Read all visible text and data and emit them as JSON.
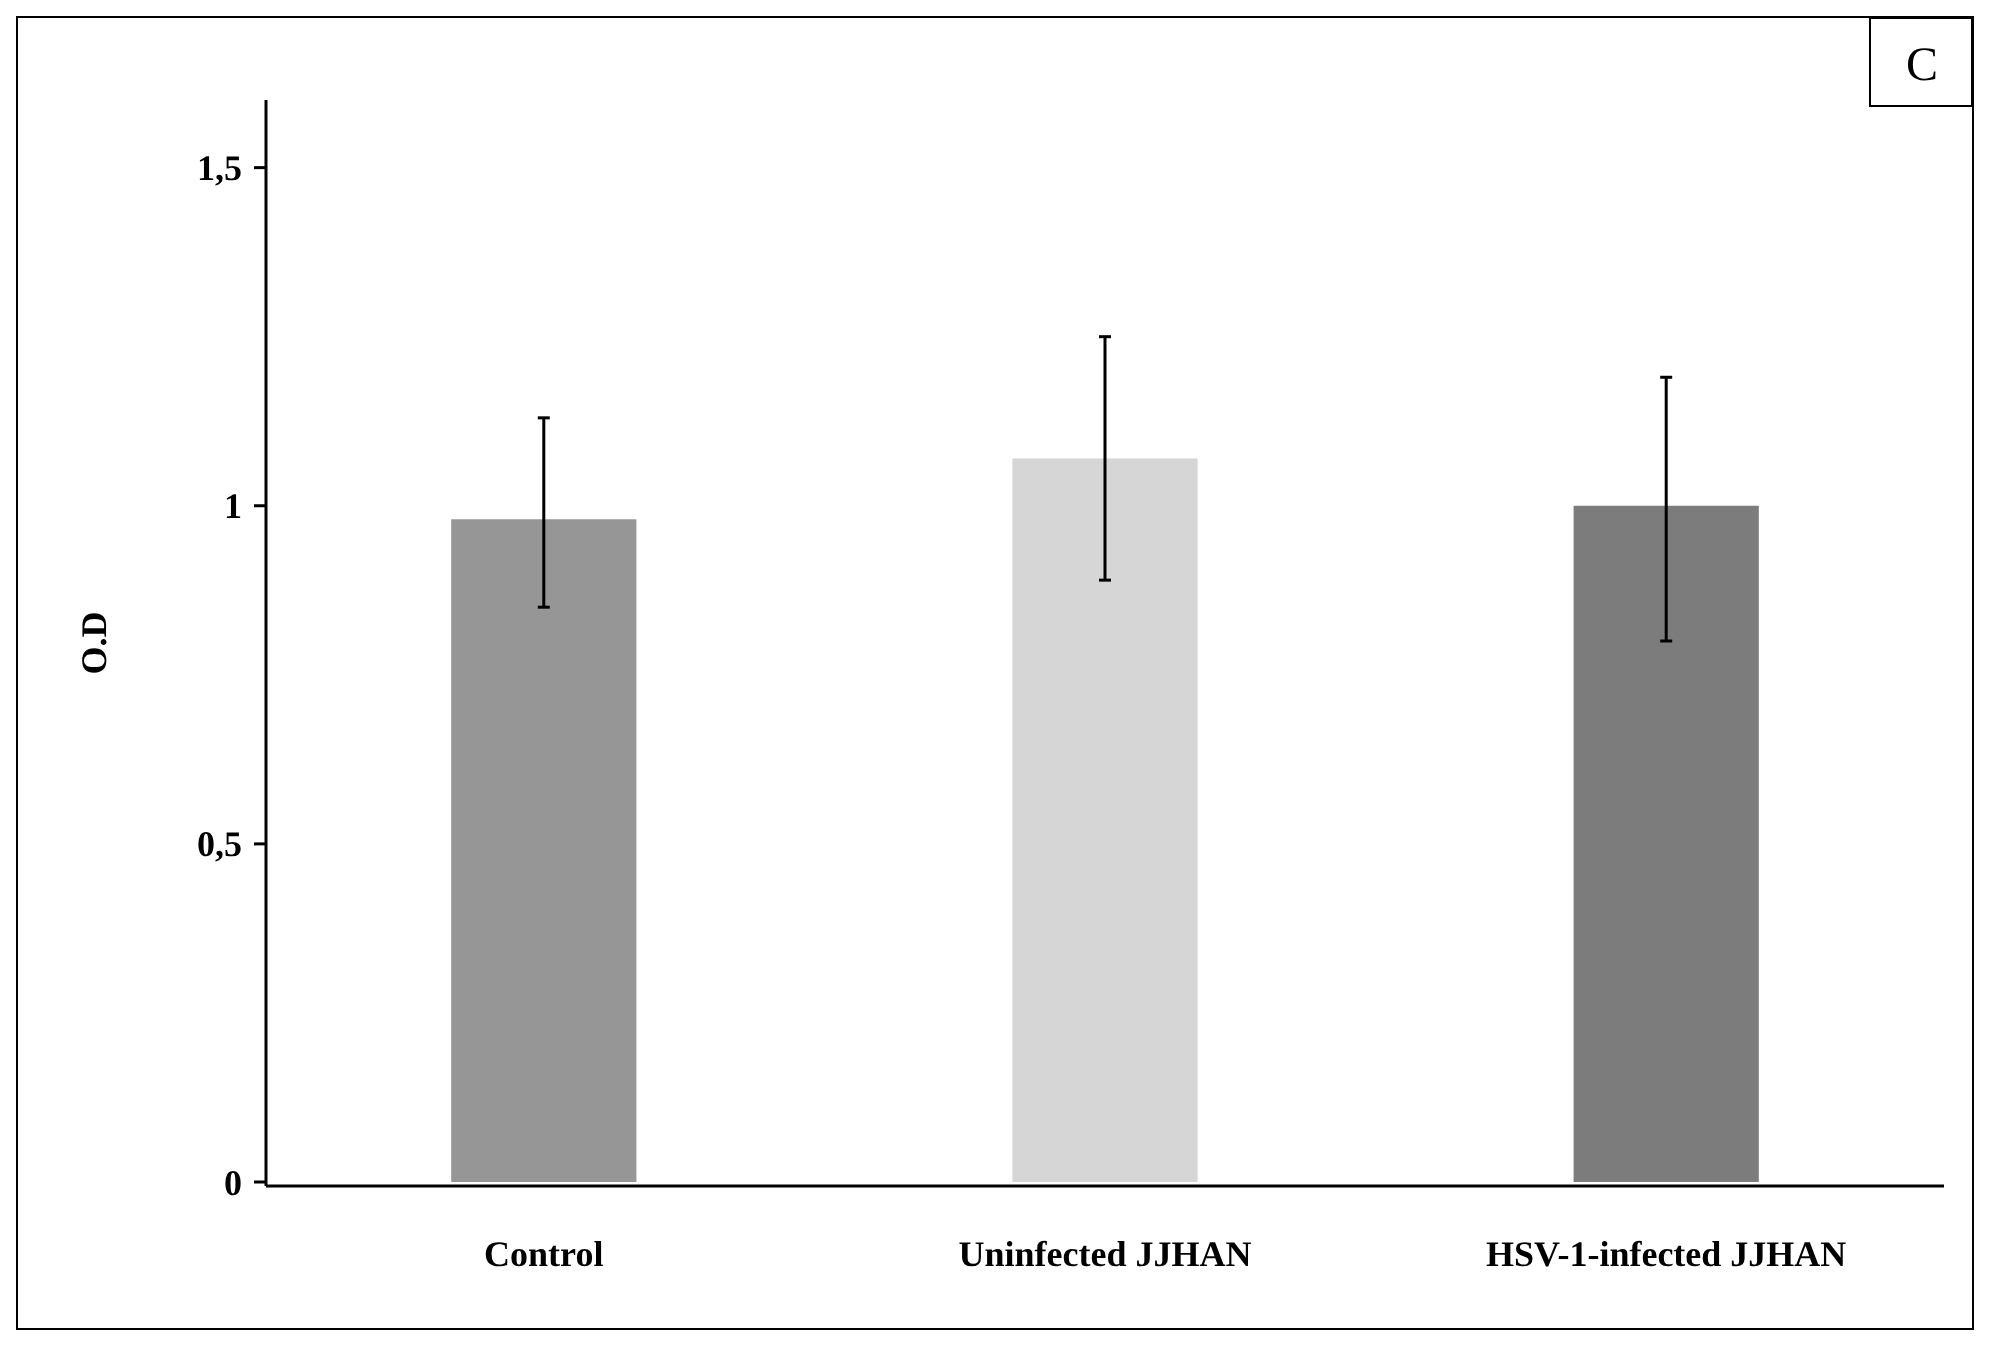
{
  "chart_data": {
    "type": "bar",
    "ylabel": "O.D",
    "categories": [
      "Control",
      "Uninfected JJHAN",
      "HSV-1-infected JJHAN"
    ],
    "values": [
      0.98,
      1.07,
      1.0
    ],
    "colors": [
      "#969696",
      "#d6d6d6",
      "#7c7c7c"
    ],
    "errors": [
      [
        0.85,
        1.13
      ],
      [
        0.89,
        1.25
      ],
      [
        0.8,
        1.19
      ]
    ],
    "ylim": [
      0,
      1.6
    ],
    "yticks": [
      0,
      {
        "value": 0.5,
        "label": "0,5"
      },
      1,
      {
        "value": 1.5,
        "label": "1,5"
      }
    ],
    "annotations": [
      "C"
    ]
  }
}
